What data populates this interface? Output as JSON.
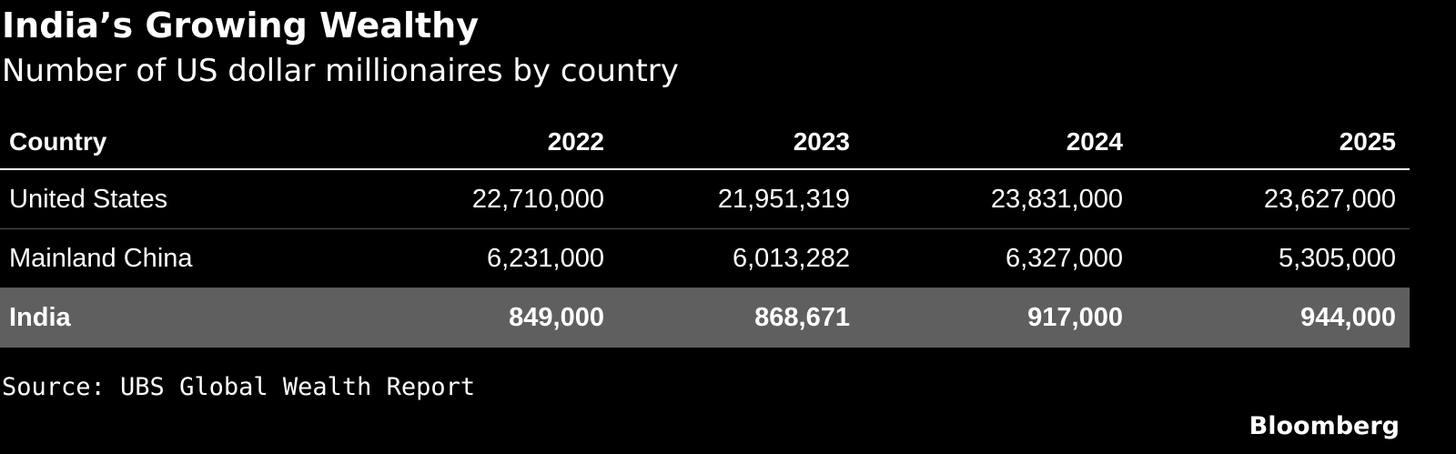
{
  "title": "India’s Growing Wealthy",
  "subtitle": "Number of US dollar millionaires by country",
  "source": "Source: UBS Global Wealth Report",
  "brand": "Bloomberg",
  "colors": {
    "background": "#000000",
    "text": "#ffffff",
    "highlight_row": "#5f5f5f",
    "divider": "#555555"
  },
  "chart_data": {
    "type": "table",
    "columns": [
      "Country",
      "2022",
      "2023",
      "2024",
      "2025"
    ],
    "rows": [
      {
        "country": "United States",
        "values": [
          "22,710,000",
          "21,951,319",
          "23,831,000",
          "23,627,000"
        ],
        "highlighted": false
      },
      {
        "country": "Mainland China",
        "values": [
          "6,231,000",
          "6,013,282",
          "6,327,000",
          "5,305,000"
        ],
        "highlighted": false
      },
      {
        "country": "India",
        "values": [
          "849,000",
          "868,671",
          "917,000",
          "944,000"
        ],
        "highlighted": true
      }
    ]
  }
}
